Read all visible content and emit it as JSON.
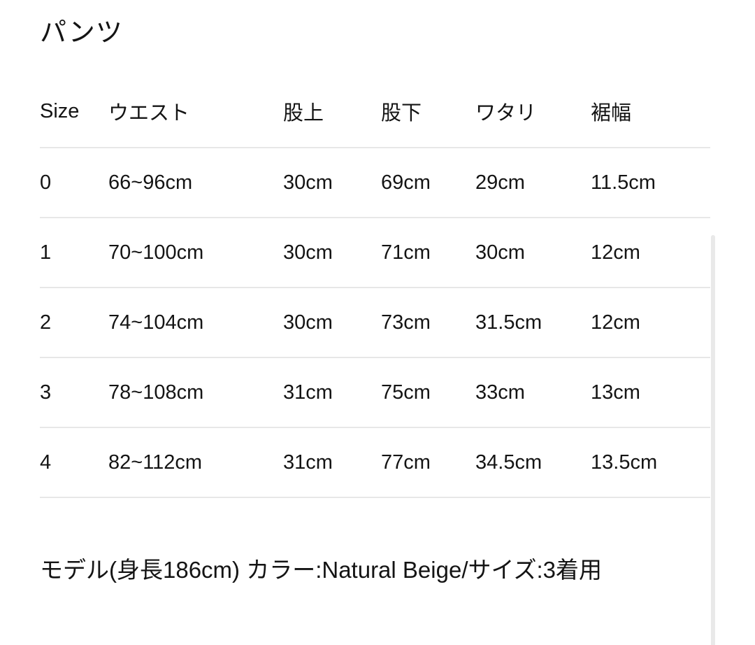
{
  "title": "パンツ",
  "size_chart": {
    "columns": [
      "Size",
      "ウエスト",
      "股上",
      "股下",
      "ワタリ",
      "裾幅"
    ],
    "rows": [
      [
        "0",
        "66~96cm",
        "30cm",
        "69cm",
        "29cm",
        "11.5cm"
      ],
      [
        "1",
        "70~100cm",
        "30cm",
        "71cm",
        "30cm",
        "12cm"
      ],
      [
        "2",
        "74~104cm",
        "30cm",
        "73cm",
        "31.5cm",
        "12cm"
      ],
      [
        "3",
        "78~108cm",
        "31cm",
        "75cm",
        "33cm",
        "13cm"
      ],
      [
        "4",
        "82~112cm",
        "31cm",
        "77cm",
        "34.5cm",
        "13.5cm"
      ]
    ]
  },
  "caption": "モデル(身長186cm) カラー:Natural Beige/サイズ:3着用",
  "colors": {
    "text": "#141414",
    "divider": "#e7e7e7",
    "scrollbar_thumb": "#e9e9e9",
    "background": "#ffffff"
  }
}
